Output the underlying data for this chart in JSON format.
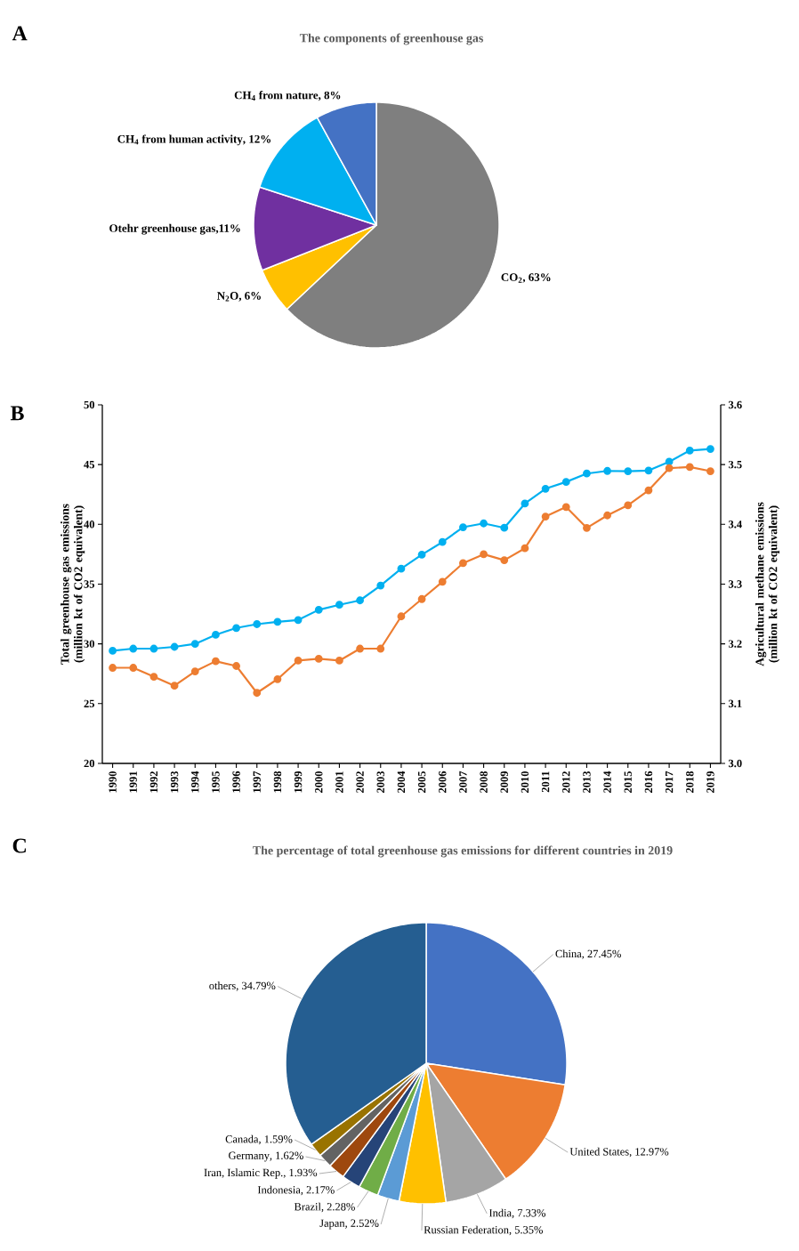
{
  "chart_data": [
    {
      "type": "pie",
      "title": "The components of greenhouse gas",
      "categories": [
        "CO$_{2}$",
        "N$_{2}$O",
        "Otehr greenhouse gas",
        "CH$_{4}$ from human activity",
        "CH$_{4}$ from nature"
      ],
      "values": [
        63,
        6,
        11,
        12,
        8
      ],
      "colors": [
        "#7f7f7f",
        "#ffc000",
        "#7030a0",
        "#00b0f0",
        "#4472c4"
      ],
      "value_labels": [
        ", 63%",
        ", 6%",
        ",11%",
        ", 12%",
        ", 8%"
      ],
      "annotations": [
        "A"
      ]
    },
    {
      "type": "line",
      "categories": [
        "1990",
        "1991",
        "1992",
        "1993",
        "1994",
        "1995",
        "1996",
        "1997",
        "1998",
        "1999",
        "2000",
        "2001",
        "2002",
        "2003",
        "2004",
        "2005",
        "2006",
        "2007",
        "2008",
        "2009",
        "2010",
        "2011",
        "2012",
        "2013",
        "2014",
        "2015",
        "2016",
        "2017",
        "2018",
        "2019"
      ],
      "ylabel": "Total greenhouse gas emissions (million kt of CO2 equivalent)",
      "y2label": "Agricultural methane emissions (million kt of CO2 equivalent)",
      "ylim": [
        20,
        50
      ],
      "yticks": [
        20,
        25,
        30,
        35,
        40,
        45,
        50
      ],
      "y2lim": [
        3.0,
        3.6
      ],
      "y2ticks": [
        {
          "value": 3.0,
          "label": "3.0"
        },
        3.1,
        3.2,
        3.3,
        3.4,
        3.5,
        3.6
      ],
      "marker": "circle",
      "line_style": "solid",
      "series": [
        {
          "color": "#00b0f0",
          "values": [
            29.42,
            29.6,
            29.6,
            29.75,
            30.0,
            30.76,
            31.33,
            31.65,
            31.85,
            32.0,
            32.85,
            33.27,
            33.64,
            34.88,
            36.29,
            37.46,
            38.52,
            39.76,
            40.08,
            39.71,
            41.74,
            42.98,
            43.55,
            44.25,
            44.47,
            44.45,
            44.5,
            45.24,
            46.18,
            46.31
          ]
        },
        {
          "color": "#ed7d31",
          "axis": "y2",
          "values": [
            3.16,
            3.16,
            3.145,
            3.13,
            3.154,
            3.171,
            3.163,
            3.118,
            3.141,
            3.172,
            3.175,
            3.172,
            3.192,
            3.192,
            3.246,
            3.275,
            3.304,
            3.335,
            3.35,
            3.34,
            3.36,
            3.413,
            3.429,
            3.394,
            3.415,
            3.432,
            3.457,
            3.494,
            3.496,
            3.489
          ]
        }
      ],
      "annotations": [
        "B"
      ]
    },
    {
      "type": "pie",
      "title": "The percentage of total greenhouse gas emissions for different countries in 2019",
      "categories": [
        "China",
        "United States",
        "India",
        "Russian Federation",
        "Japan",
        "Brazil",
        "Indonesia",
        "Iran, Islamic Rep.",
        "Germany",
        "Canada",
        "others"
      ],
      "values": [
        27.45,
        12.97,
        7.33,
        5.35,
        2.52,
        2.28,
        2.17,
        1.93,
        1.62,
        1.59,
        34.79
      ],
      "colors": [
        "#4472c4",
        "#ed7d31",
        "#a5a5a5",
        "#ffc000",
        "#5b9bd5",
        "#70ad47",
        "#264478",
        "#9e480e",
        "#636363",
        "#997300",
        "#255e91"
      ],
      "value_labels": [
        ", 27.45%",
        ", 12.97%",
        ", 7.33%",
        ", 5.35%",
        ", 2.52%",
        ", 2.28%",
        ", 2.17%",
        ", 1.93%",
        ", 1.62%",
        ", 1.59%",
        ", 34.79%"
      ],
      "annotations": [
        "C"
      ]
    }
  ]
}
